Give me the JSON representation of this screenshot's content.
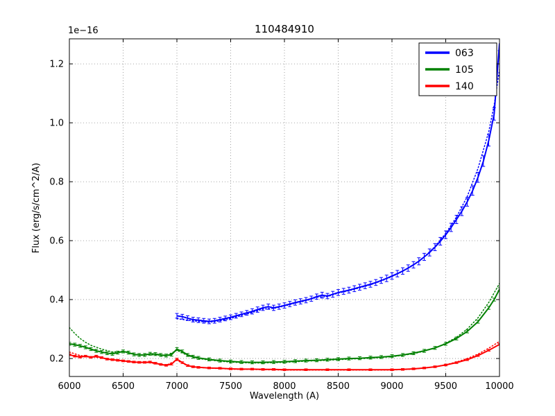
{
  "chart_data": {
    "type": "line",
    "title": "110484910",
    "xlabel": "Wavelength (A)",
    "ylabel": "Flux (erg/s/cm^2/A)",
    "offset_text": "1e−16",
    "xlim": [
      6000,
      10000
    ],
    "ylim": [
      0.139,
      1.285
    ],
    "grid": true,
    "legend_position": "upper right",
    "xticks": [
      6000,
      6500,
      7000,
      7500,
      8000,
      8500,
      9000,
      9500,
      10000
    ],
    "xtick_labels": [
      "6000",
      "6500",
      "7000",
      "7500",
      "8000",
      "8500",
      "9000",
      "9500",
      "10000"
    ],
    "yticks": [
      0.2,
      0.4,
      0.6,
      0.8,
      1.0,
      1.2
    ],
    "ytick_labels": [
      "0.2",
      "0.4",
      "0.6",
      "0.8",
      "1.0",
      "1.2"
    ],
    "series": [
      {
        "name": "063",
        "color": "#0000ff",
        "style": "solid",
        "x": [
          7000,
          7050,
          7100,
          7150,
          7200,
          7250,
          7300,
          7350,
          7400,
          7450,
          7500,
          7550,
          7600,
          7650,
          7700,
          7750,
          7800,
          7850,
          7900,
          7950,
          8000,
          8050,
          8100,
          8150,
          8200,
          8250,
          8300,
          8350,
          8400,
          8450,
          8500,
          8550,
          8600,
          8650,
          8700,
          8750,
          8800,
          8850,
          8900,
          8950,
          9000,
          9050,
          9100,
          9150,
          9200,
          9250,
          9300,
          9350,
          9400,
          9450,
          9500,
          9550,
          9600,
          9650,
          9700,
          9750,
          9800,
          9850,
          9900,
          9950,
          10000
        ],
        "y": [
          0.345,
          0.342,
          0.337,
          0.332,
          0.33,
          0.328,
          0.326,
          0.328,
          0.332,
          0.336,
          0.34,
          0.345,
          0.35,
          0.355,
          0.36,
          0.366,
          0.372,
          0.376,
          0.372,
          0.376,
          0.38,
          0.385,
          0.39,
          0.394,
          0.398,
          0.403,
          0.41,
          0.415,
          0.412,
          0.418,
          0.424,
          0.428,
          0.432,
          0.437,
          0.442,
          0.447,
          0.452,
          0.458,
          0.465,
          0.472,
          0.48,
          0.488,
          0.497,
          0.507,
          0.518,
          0.53,
          0.545,
          0.56,
          0.578,
          0.598,
          0.62,
          0.645,
          0.672,
          0.7,
          0.732,
          0.77,
          0.815,
          0.87,
          0.94,
          1.03,
          1.27
        ],
        "yerr": [
          0.008,
          0.008,
          0.008,
          0.008,
          0.008,
          0.008,
          0.008,
          0.008,
          0.008,
          0.008,
          0.008,
          0.008,
          0.008,
          0.008,
          0.009,
          0.009,
          0.009,
          0.009,
          0.009,
          0.009,
          0.009,
          0.009,
          0.009,
          0.009,
          0.009,
          0.009,
          0.009,
          0.01,
          0.009,
          0.01,
          0.01,
          0.01,
          0.01,
          0.01,
          0.01,
          0.01,
          0.01,
          0.01,
          0.01,
          0.011,
          0.011,
          0.011,
          0.011,
          0.011,
          0.011,
          0.012,
          0.012,
          0.012,
          0.012,
          0.013,
          0.013,
          0.014,
          0.014,
          0.015,
          0.015,
          0.016,
          0.017,
          0.018,
          0.019,
          0.021,
          0.025
        ]
      },
      {
        "name": "063 model",
        "color": "#0000ff",
        "style": "dotted",
        "x": [
          7000,
          7100,
          7200,
          7300,
          7400,
          7500,
          7600,
          7700,
          7800,
          7900,
          8000,
          8100,
          8200,
          8300,
          8400,
          8500,
          8600,
          8700,
          8800,
          8900,
          9000,
          9100,
          9200,
          9300,
          9400,
          9500,
          9600,
          9700,
          9800,
          9900,
          9950,
          10000
        ],
        "y": [
          0.335,
          0.33,
          0.326,
          0.323,
          0.328,
          0.336,
          0.346,
          0.356,
          0.368,
          0.37,
          0.378,
          0.388,
          0.396,
          0.408,
          0.41,
          0.422,
          0.43,
          0.44,
          0.45,
          0.463,
          0.478,
          0.496,
          0.518,
          0.545,
          0.58,
          0.625,
          0.68,
          0.75,
          0.845,
          0.97,
          1.06,
          1.18
        ]
      },
      {
        "name": "105",
        "color": "#008000",
        "style": "solid",
        "yerr": 0.005,
        "x": [
          6000,
          6050,
          6100,
          6150,
          6200,
          6250,
          6300,
          6350,
          6400,
          6450,
          6500,
          6550,
          6600,
          6650,
          6700,
          6750,
          6800,
          6850,
          6900,
          6950,
          7000,
          7050,
          7100,
          7150,
          7200,
          7300,
          7400,
          7500,
          7600,
          7700,
          7800,
          7900,
          8000,
          8100,
          8200,
          8300,
          8400,
          8500,
          8600,
          8700,
          8800,
          8900,
          9000,
          9100,
          9200,
          9300,
          9400,
          9500,
          9600,
          9700,
          9800,
          9900,
          9950,
          10000
        ],
        "y": [
          0.25,
          0.247,
          0.243,
          0.238,
          0.232,
          0.226,
          0.222,
          0.218,
          0.216,
          0.22,
          0.224,
          0.22,
          0.214,
          0.212,
          0.212,
          0.216,
          0.215,
          0.212,
          0.21,
          0.213,
          0.232,
          0.224,
          0.212,
          0.206,
          0.202,
          0.197,
          0.193,
          0.19,
          0.188,
          0.187,
          0.187,
          0.188,
          0.189,
          0.191,
          0.193,
          0.194,
          0.196,
          0.198,
          0.2,
          0.201,
          0.203,
          0.205,
          0.208,
          0.212,
          0.218,
          0.226,
          0.236,
          0.25,
          0.268,
          0.292,
          0.325,
          0.372,
          0.4,
          0.435
        ]
      },
      {
        "name": "105 model",
        "color": "#008000",
        "style": "dotted",
        "x": [
          6000,
          6050,
          6100,
          6150,
          6200,
          6300,
          6400,
          6500,
          6600,
          6700,
          6800,
          6900,
          7000,
          7100,
          7200,
          7300,
          7400,
          7500,
          7600,
          7700,
          7800,
          7900,
          8000,
          8200,
          8400,
          8600,
          8800,
          9000,
          9200,
          9400,
          9500,
          9600,
          9700,
          9800,
          9900,
          10000
        ],
        "y": [
          0.305,
          0.285,
          0.268,
          0.255,
          0.245,
          0.232,
          0.222,
          0.224,
          0.214,
          0.212,
          0.213,
          0.209,
          0.228,
          0.21,
          0.2,
          0.195,
          0.191,
          0.188,
          0.186,
          0.185,
          0.185,
          0.186,
          0.187,
          0.191,
          0.194,
          0.198,
          0.201,
          0.206,
          0.216,
          0.235,
          0.252,
          0.272,
          0.3,
          0.338,
          0.39,
          0.455
        ]
      },
      {
        "name": "140",
        "color": "#ff0000",
        "style": "solid",
        "yerr": 0.003,
        "x": [
          6000,
          6050,
          6100,
          6150,
          6200,
          6250,
          6300,
          6350,
          6400,
          6450,
          6500,
          6550,
          6600,
          6650,
          6700,
          6750,
          6800,
          6850,
          6900,
          6950,
          7000,
          7050,
          7100,
          7150,
          7200,
          7300,
          7400,
          7500,
          7600,
          7700,
          7800,
          7900,
          8000,
          8200,
          8400,
          8600,
          8800,
          9000,
          9100,
          9200,
          9300,
          9400,
          9500,
          9600,
          9700,
          9800,
          9900,
          10000
        ],
        "y": [
          0.213,
          0.208,
          0.205,
          0.208,
          0.204,
          0.208,
          0.203,
          0.198,
          0.196,
          0.194,
          0.192,
          0.19,
          0.188,
          0.187,
          0.187,
          0.188,
          0.184,
          0.18,
          0.177,
          0.181,
          0.198,
          0.186,
          0.176,
          0.172,
          0.17,
          0.168,
          0.167,
          0.165,
          0.164,
          0.164,
          0.163,
          0.163,
          0.162,
          0.162,
          0.162,
          0.162,
          0.162,
          0.162,
          0.163,
          0.165,
          0.168,
          0.172,
          0.178,
          0.186,
          0.196,
          0.21,
          0.228,
          0.248
        ]
      },
      {
        "name": "140 model",
        "color": "#ff0000",
        "style": "dotted",
        "x": [
          6000,
          6100,
          6200,
          6300,
          6400,
          6500,
          6600,
          6700,
          6800,
          6900,
          7000,
          7100,
          7200,
          7300,
          7400,
          7500,
          7600,
          7700,
          7800,
          8000,
          8200,
          8400,
          8600,
          8800,
          9000,
          9200,
          9400,
          9500,
          9600,
          9700,
          9800,
          9900,
          10000
        ],
        "y": [
          0.222,
          0.21,
          0.206,
          0.202,
          0.196,
          0.192,
          0.188,
          0.187,
          0.183,
          0.177,
          0.194,
          0.175,
          0.17,
          0.167,
          0.166,
          0.164,
          0.163,
          0.163,
          0.162,
          0.161,
          0.161,
          0.161,
          0.161,
          0.161,
          0.161,
          0.164,
          0.172,
          0.179,
          0.188,
          0.2,
          0.215,
          0.235,
          0.258
        ]
      }
    ]
  },
  "legend": {
    "entries": [
      {
        "label": "063",
        "color": "#0000ff"
      },
      {
        "label": "105",
        "color": "#008000"
      },
      {
        "label": "140",
        "color": "#ff0000"
      }
    ]
  },
  "style": {
    "grid_color": "#888888",
    "axis_color": "#000000",
    "background": "#ffffff"
  }
}
